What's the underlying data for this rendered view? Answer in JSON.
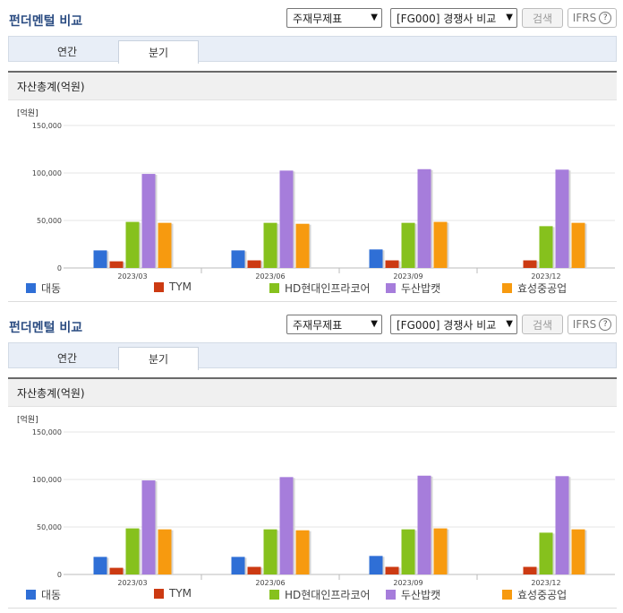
{
  "panels": [
    {
      "title": "펀더멘털 비교",
      "statement_select": "주재무제표",
      "compare_select": "[FG000] 경쟁사 비교",
      "search_label": "검색",
      "ifrs_label": "IFRS",
      "help_glyph": "?",
      "tabs": [
        {
          "label": "연간",
          "active": false
        },
        {
          "label": "분기",
          "active": true
        }
      ],
      "section_title": "자산총계(억원)"
    },
    {
      "title": "펀더멘털 비교",
      "statement_select": "주재무제표",
      "compare_select": "[FG000] 경쟁사 비교",
      "search_label": "검색",
      "ifrs_label": "IFRS",
      "help_glyph": "?",
      "tabs": [
        {
          "label": "연간",
          "active": false
        },
        {
          "label": "분기",
          "active": true
        }
      ],
      "section_title": "자산총계(억원)"
    }
  ],
  "chart_data": {
    "type": "bar",
    "unit_label": "[억원]",
    "categories": [
      "2023/03",
      "2023/06",
      "2023/09",
      "2023/12"
    ],
    "ylim": [
      0,
      150000
    ],
    "yticks": [
      "0",
      "50,000",
      "100,000",
      "150,000"
    ],
    "ytick_values": [
      0,
      50000,
      100000,
      150000
    ],
    "grid": true,
    "legend_position": "bottom",
    "series": [
      {
        "name": "대동",
        "color": "#2f6fd6",
        "values": [
          18500,
          18500,
          19500,
          null
        ]
      },
      {
        "name": "TYM",
        "color": "#cc3a12",
        "values": [
          7000,
          8000,
          8000,
          8000
        ]
      },
      {
        "name": "HD현대인프라코어",
        "color": "#86c11d",
        "values": [
          48500,
          47500,
          47500,
          44000
        ]
      },
      {
        "name": "두산밥캣",
        "color": "#a67ddb",
        "values": [
          99000,
          102500,
          104000,
          103500
        ]
      },
      {
        "name": "효성중공업",
        "color": "#f79a0f",
        "values": [
          47500,
          46500,
          48500,
          47500
        ]
      }
    ]
  }
}
